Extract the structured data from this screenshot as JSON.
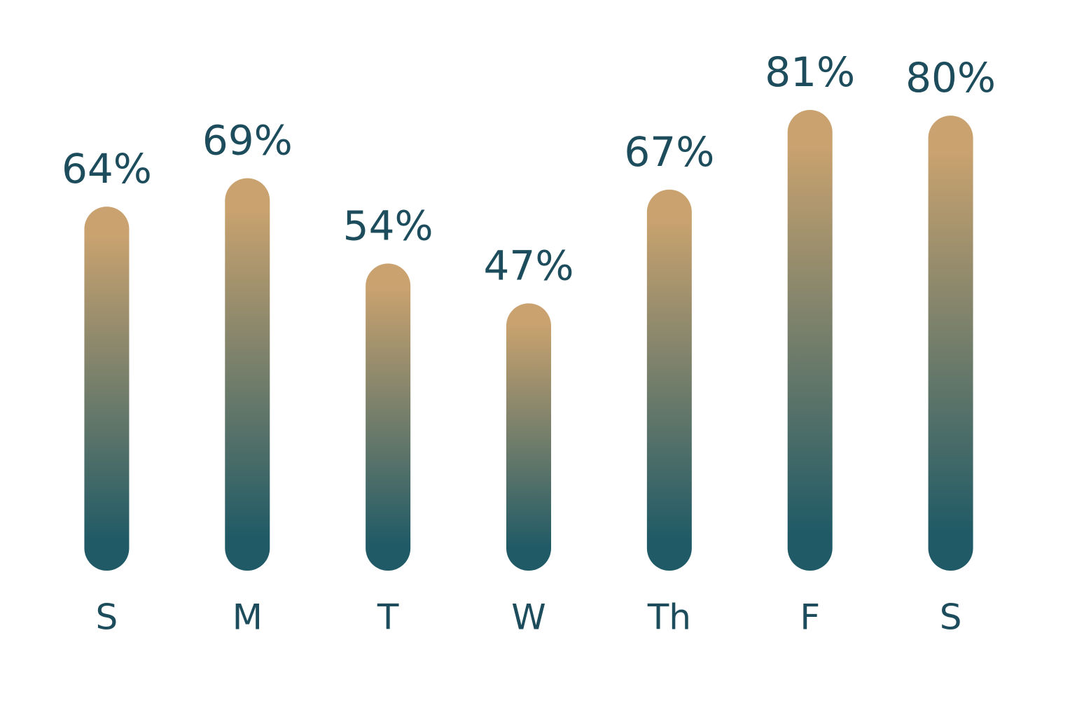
{
  "chart_data": {
    "type": "bar",
    "categories": [
      "S",
      "M",
      "T",
      "W",
      "Th",
      "F",
      "S"
    ],
    "values": [
      64,
      69,
      54,
      47,
      67,
      81,
      80
    ],
    "value_labels": [
      "64%",
      "69%",
      "54%",
      "47%",
      "67%",
      "81%",
      "80%"
    ],
    "gradient": [
      "#c9a26f",
      "#1f5a66"
    ],
    "label_color": "#1d4d5c"
  }
}
